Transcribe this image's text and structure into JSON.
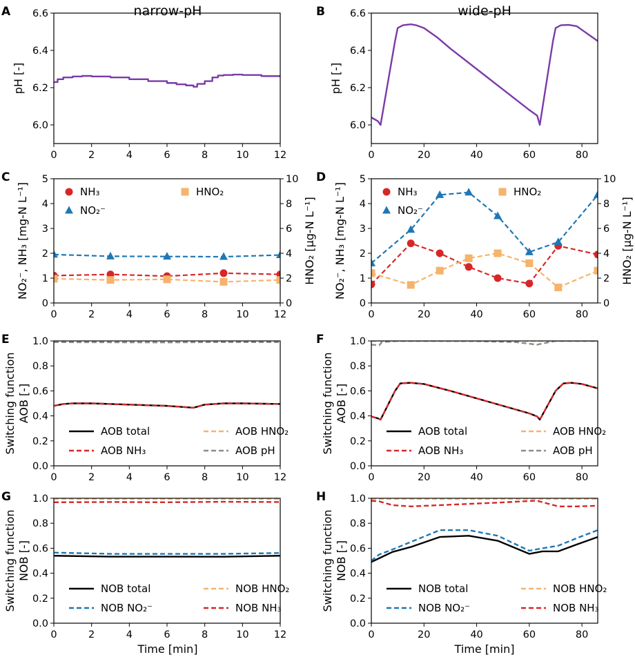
{
  "columns": {
    "left_title": "narrow-pH",
    "right_title": "wide-pH"
  },
  "xlabel": "Time [min]",
  "colors": {
    "purple": "#7a3aa8",
    "red": "#d62728",
    "blue": "#1f77b4",
    "orange": "#f6b36b",
    "gray": "#8c8c8c",
    "black": "#000000"
  },
  "chart_data": [
    {
      "panel": "A",
      "type": "line",
      "title": "narrow-pH",
      "ylabel": "pH [-]",
      "xlim": [
        0,
        12
      ],
      "ylim": [
        5.9,
        6.6
      ],
      "xticks": [
        0,
        2,
        4,
        6,
        8,
        10,
        12
      ],
      "yticks": [
        6.0,
        6.2,
        6.4,
        6.6
      ],
      "series": [
        {
          "name": "pH",
          "color": "#7a3aa8",
          "step": true,
          "x": [
            0,
            0.2,
            0.5,
            1.0,
            1.5,
            2.0,
            3.0,
            4.0,
            5.0,
            6.0,
            6.5,
            7.0,
            7.4,
            7.6,
            8.0,
            8.4,
            8.7,
            9.0,
            9.5,
            10,
            11,
            12
          ],
          "y": [
            6.23,
            6.245,
            6.255,
            6.26,
            6.263,
            6.26,
            6.255,
            6.245,
            6.235,
            6.225,
            6.218,
            6.212,
            6.205,
            6.22,
            6.235,
            6.255,
            6.265,
            6.268,
            6.27,
            6.268,
            6.262,
            6.255
          ]
        }
      ]
    },
    {
      "panel": "B",
      "type": "line",
      "title": "wide-pH",
      "ylabel": "pH [-]",
      "xlim": [
        0,
        86
      ],
      "ylim": [
        5.9,
        6.6
      ],
      "xticks": [
        0,
        20,
        40,
        60,
        80
      ],
      "yticks": [
        6.0,
        6.2,
        6.4,
        6.6
      ],
      "series": [
        {
          "name": "pH",
          "color": "#7a3aa8",
          "x": [
            0,
            2.5,
            3.5,
            9,
            10,
            12,
            15,
            17,
            20,
            25,
            30,
            40,
            50,
            60,
            63,
            64,
            69,
            70,
            72,
            75,
            78,
            80,
            83,
            86
          ],
          "y": [
            6.04,
            6.02,
            6.0,
            6.45,
            6.52,
            6.535,
            6.54,
            6.535,
            6.52,
            6.47,
            6.41,
            6.3,
            6.19,
            6.08,
            6.05,
            6.0,
            6.45,
            6.52,
            6.535,
            6.537,
            6.53,
            6.51,
            6.48,
            6.45
          ]
        }
      ]
    },
    {
      "panel": "C",
      "type": "line",
      "ylabel": "NO₂⁻, NH₃ [mg-N L⁻¹]",
      "y2label": "HNO₂ [µg-N L⁻¹]",
      "xlim": [
        0,
        12
      ],
      "ylim": [
        0,
        5
      ],
      "y2lim": [
        0,
        10
      ],
      "xticks": [
        0,
        2,
        4,
        6,
        8,
        10,
        12
      ],
      "yticks": [
        0,
        1,
        2,
        3,
        4,
        5
      ],
      "y2ticks": [
        0,
        2,
        4,
        6,
        8,
        10
      ],
      "legend": [
        "NH₃",
        "NO₂⁻",
        "HNO₂"
      ],
      "series": [
        {
          "name": "NH₃",
          "color": "#d62728",
          "marker": "circle",
          "axis": "left",
          "x": [
            0,
            3,
            6,
            9,
            12
          ],
          "y": [
            1.1,
            1.15,
            1.08,
            1.2,
            1.15
          ]
        },
        {
          "name": "NO₂⁻",
          "color": "#1f77b4",
          "marker": "triangle",
          "axis": "left",
          "x": [
            0,
            3,
            6,
            9,
            12
          ],
          "y": [
            1.95,
            1.88,
            1.87,
            1.86,
            1.93
          ]
        },
        {
          "name": "HNO₂",
          "color": "#f6b36b",
          "marker": "square",
          "axis": "right",
          "x": [
            0,
            3,
            6,
            9,
            12
          ],
          "y": [
            1.95,
            1.85,
            1.9,
            1.7,
            1.85
          ]
        }
      ]
    },
    {
      "panel": "D",
      "type": "line",
      "ylabel": "NO₂⁻, NH₃ [mg-N L⁻¹]",
      "y2label": "HNO₂ [µg-N L⁻¹]",
      "xlim": [
        0,
        86
      ],
      "ylim": [
        0,
        5
      ],
      "y2lim": [
        0,
        10
      ],
      "xticks": [
        0,
        20,
        40,
        60,
        80
      ],
      "yticks": [
        0,
        1,
        2,
        3,
        4,
        5
      ],
      "y2ticks": [
        0,
        2,
        4,
        6,
        8,
        10
      ],
      "legend": [
        "NH₃",
        "NO₂⁻",
        "HNO₂"
      ],
      "series": [
        {
          "name": "NH₃",
          "color": "#d62728",
          "marker": "circle",
          "axis": "left",
          "x": [
            0,
            15,
            26,
            37,
            48,
            60,
            71,
            86
          ],
          "y": [
            0.75,
            2.4,
            2.0,
            1.45,
            1.0,
            0.78,
            2.3,
            1.95
          ]
        },
        {
          "name": "NO₂⁻",
          "color": "#1f77b4",
          "marker": "triangle",
          "axis": "left",
          "x": [
            0,
            15,
            26,
            37,
            48,
            60,
            71,
            86
          ],
          "y": [
            1.6,
            2.95,
            4.35,
            4.45,
            3.5,
            2.05,
            2.45,
            4.35
          ]
        },
        {
          "name": "HNO₂",
          "color": "#f6b36b",
          "marker": "square",
          "axis": "right",
          "x": [
            0,
            15,
            26,
            37,
            48,
            60,
            71,
            86
          ],
          "y": [
            2.4,
            1.45,
            2.6,
            3.6,
            4.0,
            3.2,
            1.25,
            2.6
          ]
        }
      ]
    },
    {
      "panel": "E",
      "type": "line",
      "ylabel": "Switching function AOB [-]",
      "xlim": [
        0,
        12
      ],
      "ylim": [
        0,
        1.0
      ],
      "xticks": [
        0,
        2,
        4,
        6,
        8,
        10,
        12
      ],
      "yticks": [
        0.0,
        0.2,
        0.4,
        0.6,
        0.8,
        1.0
      ],
      "legend": [
        "AOB total",
        "AOB HNO₂",
        "AOB NH₃",
        "AOB pH"
      ],
      "series": [
        {
          "name": "AOB total",
          "color": "#000000",
          "dash": "",
          "x": [
            0,
            0.5,
            1,
            2,
            4,
            6,
            7.4,
            8,
            9,
            10,
            12
          ],
          "y": [
            0.48,
            0.495,
            0.5,
            0.5,
            0.49,
            0.48,
            0.465,
            0.49,
            0.5,
            0.5,
            0.495
          ]
        },
        {
          "name": "AOB HNO₂",
          "color": "#f6b36b",
          "dash": "7,4",
          "x": [
            0,
            12
          ],
          "y": [
            0.998,
            0.998
          ]
        },
        {
          "name": "AOB NH₃",
          "color": "#d62728",
          "dash": "7,4",
          "x": [
            0,
            0.5,
            1,
            2,
            4,
            6,
            7.4,
            8,
            9,
            10,
            12
          ],
          "y": [
            0.48,
            0.495,
            0.5,
            0.5,
            0.49,
            0.48,
            0.465,
            0.49,
            0.5,
            0.5,
            0.495
          ]
        },
        {
          "name": "AOB pH",
          "color": "#8c8c8c",
          "dash": "7,4",
          "x": [
            0,
            6,
            8,
            12
          ],
          "y": [
            0.99,
            0.988,
            0.99,
            0.99
          ]
        }
      ]
    },
    {
      "panel": "F",
      "type": "line",
      "ylabel": "Switching function AOB [-]",
      "xlim": [
        0,
        86
      ],
      "ylim": [
        0,
        1.0
      ],
      "xticks": [
        0,
        20,
        40,
        60,
        80
      ],
      "yticks": [
        0.0,
        0.2,
        0.4,
        0.6,
        0.8,
        1.0
      ],
      "legend": [
        "AOB total",
        "AOB HNO₂",
        "AOB NH₃",
        "AOB pH"
      ],
      "series": [
        {
          "name": "AOB total",
          "color": "#000000",
          "dash": "",
          "x": [
            0,
            2.5,
            3.5,
            9,
            11,
            15,
            20,
            30,
            40,
            50,
            60,
            63,
            64,
            70,
            73,
            76,
            80,
            86
          ],
          "y": [
            0.395,
            0.38,
            0.37,
            0.6,
            0.66,
            0.665,
            0.655,
            0.6,
            0.54,
            0.48,
            0.42,
            0.395,
            0.37,
            0.6,
            0.66,
            0.665,
            0.655,
            0.62
          ]
        },
        {
          "name": "AOB HNO₂",
          "color": "#f6b36b",
          "dash": "7,4",
          "x": [
            0,
            86
          ],
          "y": [
            0.999,
            0.999
          ]
        },
        {
          "name": "AOB NH₃",
          "color": "#d62728",
          "dash": "7,4",
          "x": [
            0,
            2.5,
            3.5,
            9,
            11,
            15,
            20,
            30,
            40,
            50,
            60,
            63,
            64,
            70,
            73,
            76,
            80,
            86
          ],
          "y": [
            0.395,
            0.38,
            0.37,
            0.6,
            0.66,
            0.665,
            0.655,
            0.6,
            0.54,
            0.48,
            0.42,
            0.395,
            0.37,
            0.6,
            0.66,
            0.665,
            0.655,
            0.62
          ]
        },
        {
          "name": "AOB pH",
          "color": "#8c8c8c",
          "dash": "7,4",
          "x": [
            0,
            3,
            4,
            10,
            20,
            40,
            55,
            63,
            64,
            70,
            86
          ],
          "y": [
            0.97,
            0.965,
            0.99,
            1.0,
            1.0,
            0.998,
            0.99,
            0.97,
            0.975,
            1.0,
            1.0
          ]
        }
      ]
    },
    {
      "panel": "G",
      "type": "line",
      "ylabel": "Switching function NOB [-]",
      "xlim": [
        0,
        12
      ],
      "ylim": [
        0,
        1.0
      ],
      "xticks": [
        0,
        2,
        4,
        6,
        8,
        10,
        12
      ],
      "yticks": [
        0.0,
        0.2,
        0.4,
        0.6,
        0.8,
        1.0
      ],
      "legend": [
        "NOB total",
        "NOB HNO₂",
        "NOB NO₂⁻",
        "NOB NH₃"
      ],
      "series": [
        {
          "name": "NOB total",
          "color": "#000000",
          "dash": "",
          "x": [
            0,
            3,
            6,
            9,
            12
          ],
          "y": [
            0.54,
            0.533,
            0.533,
            0.532,
            0.54
          ]
        },
        {
          "name": "NOB HNO₂",
          "color": "#f6b36b",
          "dash": "7,4",
          "x": [
            0,
            12
          ],
          "y": [
            0.995,
            0.995
          ]
        },
        {
          "name": "NOB NO₂⁻",
          "color": "#1f77b4",
          "dash": "7,4",
          "x": [
            0,
            3,
            6,
            9,
            12
          ],
          "y": [
            0.565,
            0.555,
            0.555,
            0.555,
            0.562
          ]
        },
        {
          "name": "NOB NH₃",
          "color": "#d62728",
          "dash": "7,4",
          "x": [
            0,
            3,
            6,
            9,
            12
          ],
          "y": [
            0.968,
            0.97,
            0.968,
            0.972,
            0.97
          ]
        }
      ]
    },
    {
      "panel": "H",
      "type": "line",
      "ylabel": "Switching function NOB [-]",
      "xlim": [
        0,
        86
      ],
      "ylim": [
        0,
        1.0
      ],
      "xticks": [
        0,
        20,
        40,
        60,
        80
      ],
      "yticks": [
        0.0,
        0.2,
        0.4,
        0.6,
        0.8,
        1.0
      ],
      "legend": [
        "NOB total",
        "NOB HNO₂",
        "NOB NO₂⁻",
        "NOB NH₃"
      ],
      "series": [
        {
          "name": "NOB total",
          "color": "#000000",
          "dash": "",
          "x": [
            0,
            3,
            8,
            15,
            26,
            37,
            48,
            60,
            65,
            71,
            78,
            86
          ],
          "y": [
            0.49,
            0.52,
            0.57,
            0.61,
            0.69,
            0.7,
            0.66,
            0.555,
            0.575,
            0.575,
            0.63,
            0.69
          ]
        },
        {
          "name": "NOB HNO₂",
          "color": "#f6b36b",
          "dash": "7,4",
          "x": [
            0,
            86
          ],
          "y": [
            0.995,
            0.995
          ]
        },
        {
          "name": "NOB NO₂⁻",
          "color": "#1f77b4",
          "dash": "7,4",
          "x": [
            0,
            3,
            8,
            15,
            26,
            37,
            48,
            60,
            65,
            71,
            78,
            86
          ],
          "y": [
            0.5,
            0.55,
            0.59,
            0.65,
            0.745,
            0.745,
            0.7,
            0.58,
            0.6,
            0.62,
            0.68,
            0.745
          ]
        },
        {
          "name": "NOB NH₃",
          "color": "#d62728",
          "dash": "7,4",
          "x": [
            0,
            3,
            8,
            15,
            26,
            37,
            48,
            60,
            63,
            71,
            78,
            86
          ],
          "y": [
            0.98,
            0.975,
            0.945,
            0.935,
            0.945,
            0.955,
            0.965,
            0.978,
            0.98,
            0.935,
            0.935,
            0.94
          ]
        }
      ]
    }
  ]
}
